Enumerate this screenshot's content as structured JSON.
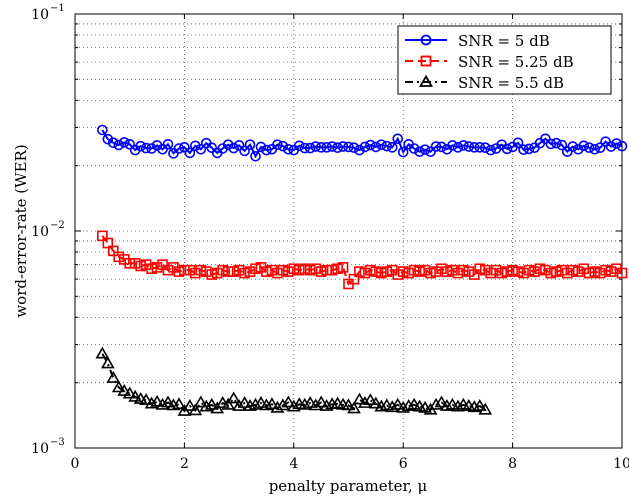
{
  "chart_data": {
    "type": "line",
    "title": "",
    "xlabel": "penalty parameter, μ",
    "ylabel": "word-error-rate (WER)",
    "xlim": [
      0,
      10
    ],
    "ylim": [
      0.001,
      0.1
    ],
    "yscale": "log",
    "grid": true,
    "legend_position": "top-right",
    "x_ticks": [
      "0",
      "2",
      "4",
      "6",
      "8",
      "10"
    ],
    "y_ticks": [
      {
        "base": "10",
        "exp": "−1"
      },
      {
        "base": "10",
        "exp": "−2"
      },
      {
        "base": "10",
        "exp": "−3"
      }
    ],
    "series": [
      {
        "name": "SNR = 5 dB",
        "color": "#0000ff",
        "marker": "circle",
        "line_style": "solid",
        "x": [
          0.5,
          0.6,
          0.7,
          0.8,
          0.9,
          1.0,
          1.1,
          1.2,
          1.3,
          1.4,
          1.5,
          1.6,
          1.7,
          1.8,
          1.9,
          2.0,
          2.1,
          2.2,
          2.3,
          2.4,
          2.5,
          2.6,
          2.7,
          2.8,
          2.9,
          3.0,
          3.1,
          3.2,
          3.3,
          3.4,
          3.5,
          3.6,
          3.7,
          3.8,
          3.9,
          4.0,
          4.1,
          4.2,
          4.3,
          4.4,
          4.5,
          4.6,
          4.7,
          4.8,
          4.9,
          5.0,
          5.1,
          5.2,
          5.3,
          5.4,
          5.5,
          5.6,
          5.7,
          5.8,
          5.9,
          6.0,
          6.1,
          6.2,
          6.3,
          6.4,
          6.5,
          6.6,
          6.7,
          6.8,
          6.9,
          7.0,
          7.1,
          7.2,
          7.3,
          7.4,
          7.5,
          7.6,
          7.7,
          7.8,
          7.9,
          8.0,
          8.1,
          8.2,
          8.3,
          8.4,
          8.5,
          8.6,
          8.7,
          8.8,
          8.9,
          9.0,
          9.1,
          9.2,
          9.3,
          9.4,
          9.5,
          9.6,
          9.7,
          9.8,
          9.9,
          10.0
        ],
        "values": [
          0.0292,
          0.0265,
          0.0255,
          0.0249,
          0.0256,
          0.0251,
          0.0236,
          0.0246,
          0.0241,
          0.024,
          0.0248,
          0.0238,
          0.0251,
          0.0228,
          0.024,
          0.0243,
          0.0229,
          0.0247,
          0.0238,
          0.0254,
          0.0242,
          0.0229,
          0.024,
          0.025,
          0.0241,
          0.0248,
          0.0234,
          0.025,
          0.0221,
          0.0244,
          0.0236,
          0.0238,
          0.025,
          0.0246,
          0.0238,
          0.0236,
          0.0247,
          0.0241,
          0.0241,
          0.0245,
          0.0243,
          0.0243,
          0.0245,
          0.0242,
          0.0245,
          0.0244,
          0.0242,
          0.0236,
          0.0244,
          0.0249,
          0.0244,
          0.025,
          0.0246,
          0.0243,
          0.0266,
          0.0231,
          0.0251,
          0.024,
          0.0232,
          0.0237,
          0.0232,
          0.0245,
          0.0244,
          0.0238,
          0.0248,
          0.0243,
          0.0248,
          0.0245,
          0.0243,
          0.0243,
          0.0242,
          0.0236,
          0.024,
          0.025,
          0.0239,
          0.0244,
          0.0255,
          0.0237,
          0.0239,
          0.0242,
          0.0254,
          0.0266,
          0.0252,
          0.0254,
          0.0249,
          0.0232,
          0.0245,
          0.0238,
          0.0247,
          0.0242,
          0.0238,
          0.0242,
          0.0258,
          0.0245,
          0.0253,
          0.0246
        ]
      },
      {
        "name": "SNR = 5.25 dB",
        "color": "#ff0000",
        "marker": "square",
        "line_style": "dashed",
        "x": [
          0.5,
          0.6,
          0.7,
          0.8,
          0.9,
          1.0,
          1.1,
          1.2,
          1.3,
          1.4,
          1.5,
          1.6,
          1.7,
          1.8,
          1.9,
          2.0,
          2.1,
          2.2,
          2.3,
          2.4,
          2.5,
          2.6,
          2.7,
          2.8,
          2.9,
          3.0,
          3.1,
          3.2,
          3.3,
          3.4,
          3.5,
          3.6,
          3.7,
          3.8,
          3.9,
          4.0,
          4.1,
          4.2,
          4.3,
          4.4,
          4.5,
          4.6,
          4.7,
          4.8,
          4.9,
          5.0,
          5.1,
          5.2,
          5.3,
          5.4,
          5.5,
          5.6,
          5.7,
          5.8,
          5.9,
          6.0,
          6.1,
          6.2,
          6.3,
          6.4,
          6.5,
          6.6,
          6.7,
          6.8,
          6.9,
          7.0,
          7.1,
          7.2,
          7.3,
          7.4,
          7.5,
          7.6,
          7.7,
          7.8,
          7.9,
          8.0,
          8.1,
          8.2,
          8.3,
          8.4,
          8.5,
          8.6,
          8.7,
          8.8,
          8.9,
          9.0,
          9.1,
          9.2,
          9.3,
          9.4,
          9.5,
          9.6,
          9.7,
          9.8,
          9.9,
          10.0
        ],
        "values": [
          0.0095,
          0.0088,
          0.0081,
          0.0076,
          0.0074,
          0.0071,
          0.0071,
          0.0069,
          0.007,
          0.0067,
          0.0068,
          0.007,
          0.0066,
          0.0068,
          0.0065,
          0.0066,
          0.0066,
          0.0064,
          0.0066,
          0.0065,
          0.0063,
          0.0064,
          0.0066,
          0.0065,
          0.0065,
          0.0066,
          0.0064,
          0.0065,
          0.0067,
          0.0068,
          0.0065,
          0.0066,
          0.0064,
          0.0066,
          0.0065,
          0.0067,
          0.0066,
          0.0067,
          0.0066,
          0.0067,
          0.0065,
          0.0066,
          0.0066,
          0.0067,
          0.0068,
          0.0057,
          0.006,
          0.0065,
          0.0064,
          0.0066,
          0.0065,
          0.0064,
          0.0065,
          0.0066,
          0.0063,
          0.0065,
          0.0064,
          0.0066,
          0.0065,
          0.0066,
          0.0064,
          0.0065,
          0.0067,
          0.0065,
          0.0066,
          0.0064,
          0.0066,
          0.0065,
          0.0063,
          0.0067,
          0.0066,
          0.0064,
          0.0066,
          0.0064,
          0.0065,
          0.0066,
          0.0065,
          0.0064,
          0.0066,
          0.0065,
          0.0067,
          0.0066,
          0.0064,
          0.0065,
          0.0066,
          0.0064,
          0.0066,
          0.0065,
          0.0067,
          0.0064,
          0.0065,
          0.0064,
          0.0066,
          0.0065,
          0.0067,
          0.0064
        ]
      },
      {
        "name": "SNR = 5.5 dB",
        "color": "#000000",
        "marker": "triangle",
        "line_style": "dashdot",
        "x": [
          0.5,
          0.6,
          0.7,
          0.8,
          0.9,
          1.0,
          1.1,
          1.2,
          1.3,
          1.4,
          1.5,
          1.6,
          1.7,
          1.8,
          1.9,
          2.0,
          2.1,
          2.2,
          2.3,
          2.4,
          2.5,
          2.6,
          2.7,
          2.8,
          2.9,
          3.0,
          3.1,
          3.2,
          3.3,
          3.4,
          3.5,
          3.6,
          3.7,
          3.8,
          3.9,
          4.0,
          4.1,
          4.2,
          4.3,
          4.4,
          4.5,
          4.6,
          4.7,
          4.8,
          4.9,
          5.0,
          5.1,
          5.2,
          5.3,
          5.4,
          5.5,
          5.6,
          5.7,
          5.8,
          5.9,
          6.0,
          6.1,
          6.2,
          6.3,
          6.4,
          6.5,
          6.6,
          6.7,
          6.8,
          6.9,
          7.0,
          7.1,
          7.2,
          7.3,
          7.4,
          7.5
        ],
        "values": [
          0.00272,
          0.00245,
          0.0021,
          0.0019,
          0.00183,
          0.00178,
          0.00172,
          0.00168,
          0.00166,
          0.0016,
          0.00163,
          0.00158,
          0.00162,
          0.00157,
          0.00159,
          0.00148,
          0.00156,
          0.00149,
          0.00162,
          0.00155,
          0.00158,
          0.00152,
          0.00161,
          0.00158,
          0.00169,
          0.00156,
          0.00161,
          0.00156,
          0.00158,
          0.00161,
          0.00157,
          0.00159,
          0.00153,
          0.00157,
          0.00162,
          0.00155,
          0.00159,
          0.00158,
          0.00161,
          0.00157,
          0.00162,
          0.00156,
          0.00159,
          0.0016,
          0.00158,
          0.00157,
          0.00152,
          0.00167,
          0.00161,
          0.00166,
          0.0016,
          0.00155,
          0.00157,
          0.00154,
          0.00158,
          0.00153,
          0.00156,
          0.00158,
          0.00155,
          0.00153,
          0.0015,
          0.00158,
          0.00162,
          0.00156,
          0.00158,
          0.00155,
          0.00158,
          0.00156,
          0.00154,
          0.00156,
          0.0015
        ]
      }
    ]
  }
}
